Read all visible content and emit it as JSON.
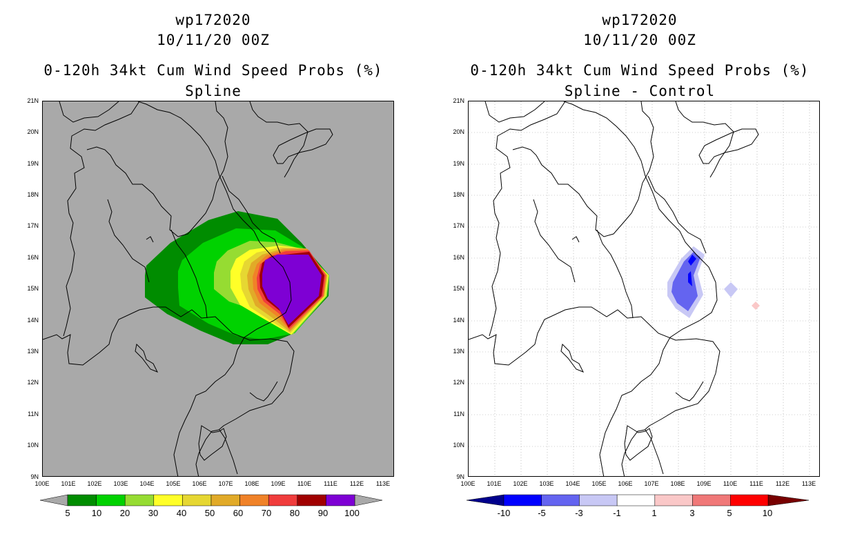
{
  "left_panel": {
    "title": "wp172020",
    "datetime": "10/11/20 00Z",
    "product": "0-120h 34kt Cum Wind Speed Probs (%)",
    "subtitle": "Spline",
    "colorbar": {
      "labels": [
        "5",
        "10",
        "20",
        "30",
        "40",
        "50",
        "60",
        "70",
        "80",
        "90",
        "100"
      ],
      "colors": [
        "#008c00",
        "#00d200",
        "#96dc32",
        "#ffff28",
        "#e6d732",
        "#e1aa28",
        "#f08228",
        "#f03c3c",
        "#a00000",
        "#7e00d4"
      ]
    }
  },
  "right_panel": {
    "title": "wp172020",
    "datetime": "10/11/20 00Z",
    "product": "0-120h 34kt Cum Wind Speed Probs (%)",
    "subtitle": "Spline - Control",
    "colorbar": {
      "labels": [
        "-10",
        "-5",
        "-3",
        "-1",
        "1",
        "3",
        "5",
        "10"
      ],
      "colors": [
        "#0000ff",
        "#6464f0",
        "#c8c8f5",
        "#ffffff",
        "#fac8c8",
        "#f07878",
        "#ff0000"
      ]
    }
  },
  "axes": {
    "lat_labels": [
      "21N",
      "20N",
      "19N",
      "18N",
      "17N",
      "16N",
      "15N",
      "14N",
      "13N",
      "12N",
      "11N",
      "10N",
      "9N"
    ],
    "lon_labels": [
      "100E",
      "101E",
      "102E",
      "103E",
      "104E",
      "105E",
      "106E",
      "107E",
      "108E",
      "109E",
      "110E",
      "111E",
      "112E",
      "113E"
    ]
  }
}
